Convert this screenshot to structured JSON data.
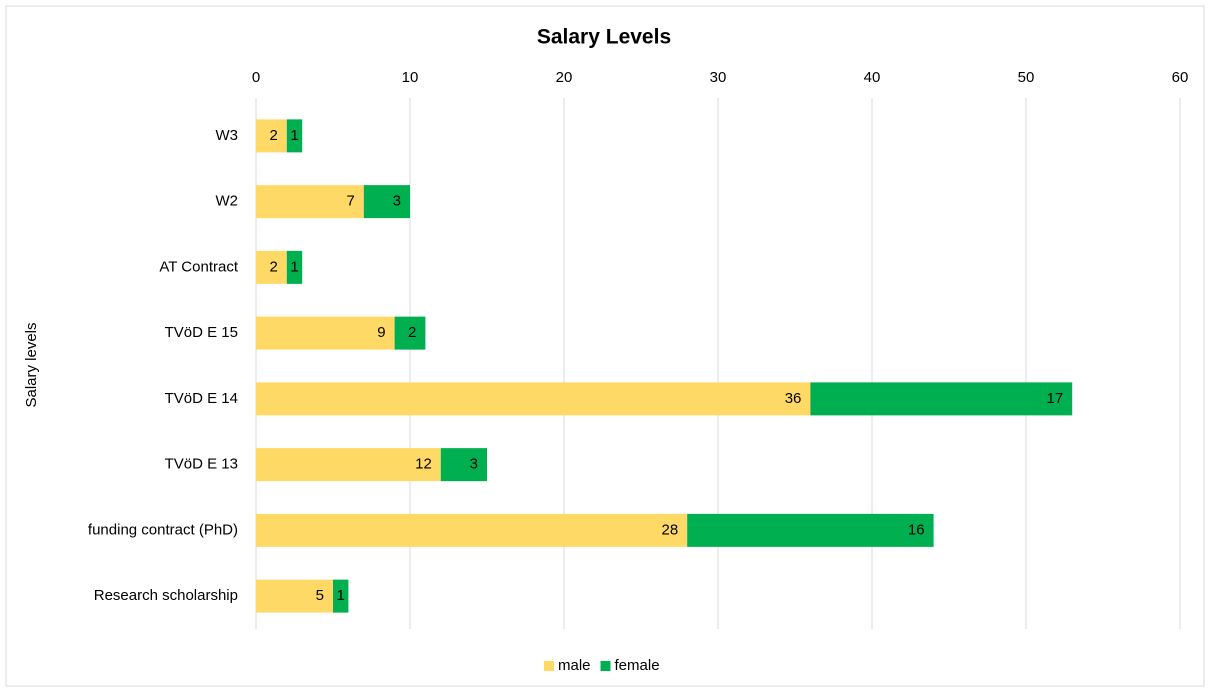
{
  "chart_data": {
    "type": "bar",
    "orientation": "horizontal",
    "stacked": true,
    "title": "Salary Levels",
    "y_label": "Salary levels",
    "categories": [
      "W3",
      "W2",
      "AT Contract",
      "TVöD E 15",
      "TVöD E 14",
      "TVöD E 13",
      "funding contract (PhD)",
      "Research scholarship"
    ],
    "series": [
      {
        "name": "male",
        "color": "#ffd966",
        "values": [
          2,
          7,
          2,
          9,
          36,
          12,
          28,
          5
        ]
      },
      {
        "name": "female",
        "color": "#00b050",
        "values": [
          1,
          3,
          1,
          2,
          17,
          3,
          16,
          1
        ]
      }
    ],
    "xlim": [
      0,
      60
    ],
    "xticks": [
      0,
      10,
      20,
      30,
      40,
      50,
      60
    ],
    "x_axis_position": "top",
    "grid": true,
    "legend": "bottom"
  }
}
